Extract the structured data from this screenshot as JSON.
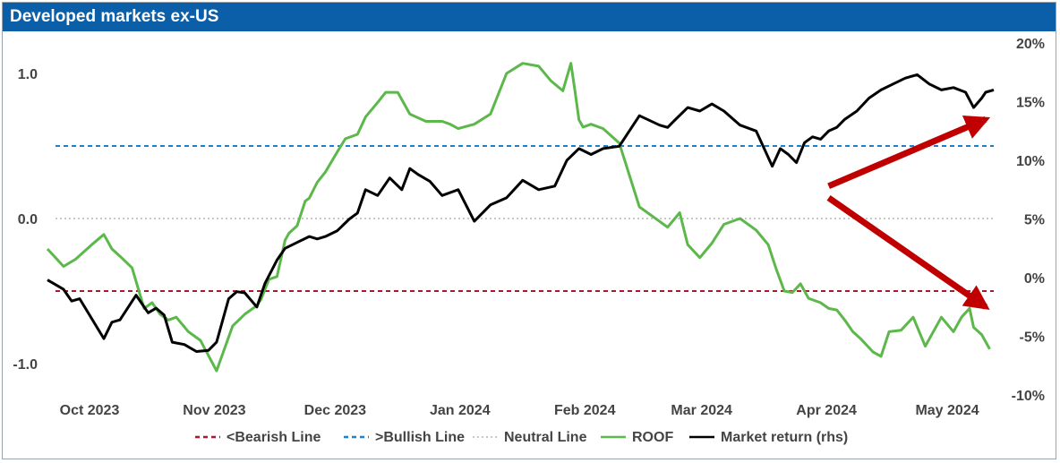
{
  "chart_data": {
    "type": "line",
    "title": "Developed markets ex-US",
    "x_ticks": [
      "Oct 2023",
      "Nov 2023",
      "Dec 2023",
      "Jan 2024",
      "Feb 2024",
      "Mar 2024",
      "Apr 2024",
      "May 2024"
    ],
    "y_left_ticks": [
      "1.0",
      "0.0",
      "-1.0"
    ],
    "y_left_tick_values": [
      1.0,
      0.0,
      -1.0
    ],
    "y_left_range": [
      -1.15,
      1.25
    ],
    "y_right_ticks": [
      "20%",
      "15%",
      "10%",
      "5%",
      "0%",
      "-5%",
      "-10%"
    ],
    "y_right_tick_values": [
      20,
      15,
      10,
      5,
      0,
      -5,
      -10
    ],
    "y_right_range": [
      -10,
      20
    ],
    "x_range": [
      0,
      233
    ],
    "x_tick_positions": [
      0,
      31,
      61,
      92,
      123,
      152,
      183,
      213
    ],
    "legend": {
      "placement": "bottom",
      "items": [
        {
          "label": "<Bearish Line",
          "style": "dashed",
          "color": "#a6192e"
        },
        {
          "label": ">Bullish Line",
          "style": "dashed",
          "color": "#1f7fc9"
        },
        {
          "label": "Neutral Line",
          "style": "dotted",
          "color": "#b5b5b5"
        },
        {
          "label": "ROOF",
          "style": "solid",
          "color": "#5cb84a"
        },
        {
          "label": "Market return (rhs)",
          "style": "solid",
          "color": "#000000"
        }
      ]
    },
    "reference_lines": [
      {
        "name": "<Bearish Line",
        "axis": "left",
        "value": -0.5,
        "color": "#a6192e",
        "style": "dashed"
      },
      {
        "name": ">Bullish Line",
        "axis": "left",
        "value": 0.5,
        "color": "#1f7fc9",
        "style": "dashed"
      },
      {
        "name": "Neutral Line",
        "axis": "left",
        "value": 0.0,
        "color": "#b5b5b5",
        "style": "dotted"
      }
    ],
    "series": [
      {
        "name": "ROOF",
        "axis": "left",
        "color": "#5cb84a",
        "x": [
          -2,
          2,
          5,
          9,
          12,
          14,
          16,
          19,
          22,
          24,
          26,
          28,
          30,
          33,
          36,
          40,
          44,
          47,
          50,
          51,
          53,
          55,
          57,
          58,
          60,
          62,
          63,
          65,
          67,
          70,
          72,
          75,
          77,
          80,
          82,
          85,
          88,
          92,
          96,
          98,
          100,
          104,
          108,
          112,
          116,
          120,
          123,
          126,
          128,
          129,
          130,
          131,
          133,
          136,
          140,
          145,
          150,
          152,
          155,
          157,
          160,
          163,
          166,
          170,
          174,
          177,
          179,
          181,
          183,
          185,
          187,
          190,
          192,
          194,
          196,
          198,
          200,
          203,
          205,
          207,
          210,
          213,
          216,
          220,
          223,
          225,
          227,
          228,
          230,
          232
        ],
        "values": [
          -0.21,
          -0.33,
          -0.28,
          -0.18,
          -0.11,
          -0.21,
          -0.26,
          -0.34,
          -0.62,
          -0.58,
          -0.66,
          -0.7,
          -0.68,
          -0.78,
          -0.84,
          -1.05,
          -0.74,
          -0.66,
          -0.6,
          -0.56,
          -0.42,
          -0.4,
          -0.15,
          -0.1,
          -0.05,
          0.12,
          0.14,
          0.25,
          0.32,
          0.46,
          0.55,
          0.58,
          0.7,
          0.8,
          0.87,
          0.87,
          0.72,
          0.67,
          0.67,
          0.65,
          0.62,
          0.65,
          0.72,
          1.0,
          1.07,
          1.05,
          0.95,
          0.88,
          1.07,
          0.88,
          0.68,
          0.63,
          0.65,
          0.62,
          0.52,
          0.08,
          -0.02,
          -0.06,
          0.04,
          -0.18,
          -0.27,
          -0.17,
          -0.04,
          0.0,
          -0.08,
          -0.18,
          -0.35,
          -0.5,
          -0.51,
          -0.45,
          -0.55,
          -0.58,
          -0.62,
          -0.63,
          -0.7,
          -0.78,
          -0.83,
          -0.92,
          -0.95,
          -0.78,
          -0.77,
          -0.68,
          -0.88,
          -0.68,
          -0.78,
          -0.68,
          -0.62,
          -0.75,
          -0.8,
          -0.9
        ]
      },
      {
        "name": "Market return (rhs)",
        "axis": "right",
        "color": "#000000",
        "x": [
          -2,
          2,
          4,
          6,
          9,
          12,
          14,
          16,
          20,
          23,
          25,
          27,
          29,
          32,
          35,
          38,
          40,
          43,
          45,
          47,
          50,
          52,
          55,
          57,
          60,
          63,
          65,
          67,
          70,
          73,
          75,
          77,
          80,
          83,
          86,
          88,
          90,
          93,
          96,
          100,
          104,
          108,
          112,
          116,
          120,
          124,
          127,
          130,
          133,
          136,
          140,
          145,
          150,
          152,
          154,
          157,
          160,
          163,
          166,
          170,
          174,
          178,
          180,
          182,
          184,
          186,
          188,
          190,
          192,
          194,
          196,
          199,
          202,
          205,
          208,
          211,
          214,
          217,
          220,
          223,
          226,
          228,
          230,
          231,
          233
        ],
        "values": [
          -0.2,
          -1.0,
          -2.0,
          -1.8,
          -3.5,
          -5.2,
          -3.8,
          -3.6,
          -1.5,
          -3.0,
          -2.6,
          -3.2,
          -5.5,
          -5.7,
          -6.3,
          -6.2,
          -5.5,
          -1.8,
          -1.2,
          -1.3,
          -2.5,
          -0.5,
          1.5,
          2.5,
          3.0,
          3.5,
          3.3,
          3.5,
          4.0,
          5.0,
          5.5,
          7.5,
          7.0,
          8.5,
          7.5,
          9.3,
          8.8,
          8.2,
          7.0,
          7.5,
          4.8,
          6.2,
          6.8,
          8.3,
          7.5,
          7.8,
          10.0,
          11.0,
          10.5,
          11.0,
          11.2,
          13.8,
          13.0,
          12.8,
          13.5,
          14.5,
          14.2,
          14.8,
          14.2,
          13.0,
          12.5,
          9.5,
          11.0,
          10.5,
          9.8,
          11.5,
          12.0,
          11.8,
          12.5,
          12.8,
          13.5,
          14.2,
          15.3,
          16.0,
          16.5,
          17.0,
          17.3,
          16.5,
          16.0,
          16.2,
          15.8,
          14.5,
          15.3,
          15.8,
          16.0
        ]
      }
    ],
    "annotations": [
      {
        "type": "arrow",
        "color": "#c00000",
        "from": [
          192,
          7.8
        ],
        "to": [
          231,
          13.5
        ],
        "axis": "right"
      },
      {
        "type": "arrow",
        "color": "#c00000",
        "from": [
          192,
          6.8
        ],
        "to": [
          231,
          -2.5
        ],
        "axis": "right"
      }
    ]
  }
}
